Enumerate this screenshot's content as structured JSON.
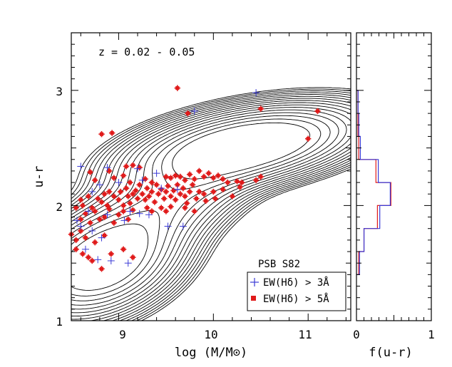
{
  "chart_data": [
    {
      "type": "scatter",
      "subtype": "contour + scatter",
      "title": "",
      "annotation_redshift": "z = 0.02 - 0.05",
      "xlabel": "log (M/M⊙)",
      "ylabel": "u-r",
      "xlim": [
        8.5,
        11.45
      ],
      "ylim": [
        1.0,
        3.5
      ],
      "xticks": [
        9,
        10,
        11
      ],
      "xtick_labels": [
        "9",
        "10",
        "11"
      ],
      "yticks": [
        1,
        2,
        3
      ],
      "ytick_labels": [
        "1",
        "2",
        "3"
      ],
      "legend": {
        "placement": "bottom-right",
        "title": "PSB S82",
        "entries": [
          {
            "label": "EW(Hδ) > 3Å",
            "marker": "plus",
            "color": "#3a3ad6"
          },
          {
            "label": "EW(Hδ) > 5Å",
            "marker": "filled-star",
            "color": "#e01b1b"
          }
        ]
      },
      "contours": {
        "levels": 16,
        "peaks": [
          {
            "name": "blue-cloud",
            "x": 8.82,
            "y": 1.5
          },
          {
            "name": "red-sequence",
            "x": 10.35,
            "y": 2.52
          }
        ]
      },
      "series": [
        {
          "name": "EW(Hδ) > 5Å",
          "marker": "filled-star",
          "color": "#e01b1b",
          "points": [
            [
              9.62,
              3.02
            ],
            [
              9.73,
              2.8
            ],
            [
              10.5,
              2.84
            ],
            [
              11.1,
              2.82
            ],
            [
              8.82,
              2.62
            ],
            [
              8.93,
              2.63
            ],
            [
              11.0,
              2.58
            ],
            [
              8.7,
              2.29
            ],
            [
              8.9,
              2.3
            ],
            [
              9.08,
              2.34
            ],
            [
              9.15,
              2.35
            ],
            [
              9.22,
              2.33
            ],
            [
              8.75,
              2.22
            ],
            [
              8.95,
              2.24
            ],
            [
              9.05,
              2.26
            ],
            [
              9.12,
              2.2
            ],
            [
              9.28,
              2.23
            ],
            [
              9.35,
              2.2
            ],
            [
              9.5,
              2.25
            ],
            [
              9.55,
              2.24
            ],
            [
              9.6,
              2.26
            ],
            [
              9.65,
              2.25
            ],
            [
              9.7,
              2.22
            ],
            [
              9.75,
              2.27
            ],
            [
              9.8,
              2.23
            ],
            [
              9.85,
              2.3
            ],
            [
              9.9,
              2.25
            ],
            [
              9.95,
              2.28
            ],
            [
              10.0,
              2.24
            ],
            [
              10.05,
              2.26
            ],
            [
              10.1,
              2.23
            ],
            [
              10.15,
              2.2
            ],
            [
              10.25,
              2.21
            ],
            [
              10.3,
              2.2
            ],
            [
              10.45,
              2.22
            ],
            [
              10.5,
              2.25
            ],
            [
              8.6,
              2.05
            ],
            [
              8.62,
              2.0
            ],
            [
              8.68,
              2.08
            ],
            [
              8.72,
              1.98
            ],
            [
              8.78,
              2.06
            ],
            [
              8.82,
              2.03
            ],
            [
              8.85,
              2.1
            ],
            [
              8.88,
              2.0
            ],
            [
              8.9,
              2.12
            ],
            [
              8.95,
              2.08
            ],
            [
              9.0,
              2.05
            ],
            [
              9.02,
              2.12
            ],
            [
              9.05,
              2.0
            ],
            [
              9.08,
              2.15
            ],
            [
              9.1,
              2.08
            ],
            [
              9.12,
              2.02
            ],
            [
              9.15,
              2.1
            ],
            [
              9.18,
              2.13
            ],
            [
              9.2,
              2.06
            ],
            [
              9.22,
              2.18
            ],
            [
              9.25,
              2.1
            ],
            [
              9.28,
              2.05
            ],
            [
              9.3,
              2.15
            ],
            [
              9.32,
              2.08
            ],
            [
              9.35,
              2.12
            ],
            [
              9.38,
              2.03
            ],
            [
              9.4,
              2.18
            ],
            [
              9.42,
              2.1
            ],
            [
              9.45,
              2.14
            ],
            [
              9.48,
              2.06
            ],
            [
              9.5,
              2.12
            ],
            [
              9.52,
              2.17
            ],
            [
              9.55,
              2.08
            ],
            [
              9.58,
              2.13
            ],
            [
              9.6,
              2.05
            ],
            [
              9.62,
              2.18
            ],
            [
              9.65,
              2.1
            ],
            [
              9.68,
              2.15
            ],
            [
              9.7,
              2.08
            ],
            [
              9.72,
              2.02
            ],
            [
              9.75,
              2.12
            ],
            [
              9.78,
              2.18
            ],
            [
              9.82,
              2.06
            ],
            [
              9.85,
              2.12
            ],
            [
              9.9,
              2.1
            ],
            [
              9.92,
              2.04
            ],
            [
              10.0,
              2.12
            ],
            [
              10.02,
              2.06
            ],
            [
              10.1,
              2.14
            ],
            [
              10.2,
              2.08
            ],
            [
              10.28,
              2.16
            ],
            [
              8.55,
              1.98
            ],
            [
              8.6,
              1.88
            ],
            [
              8.65,
              1.93
            ],
            [
              8.7,
              1.85
            ],
            [
              8.75,
              1.95
            ],
            [
              8.8,
              1.88
            ],
            [
              8.85,
              1.9
            ],
            [
              8.9,
              1.97
            ],
            [
              8.95,
              1.85
            ],
            [
              9.0,
              1.92
            ],
            [
              9.05,
              1.95
            ],
            [
              9.1,
              1.88
            ],
            [
              9.15,
              1.96
            ],
            [
              9.3,
              1.98
            ],
            [
              9.35,
              1.95
            ],
            [
              9.45,
              1.98
            ],
            [
              9.5,
              1.95
            ],
            [
              9.55,
              1.99
            ],
            [
              9.7,
              1.98
            ],
            [
              9.8,
              1.95
            ],
            [
              8.5,
              1.75
            ],
            [
              8.55,
              1.7
            ],
            [
              8.6,
              1.78
            ],
            [
              8.65,
              1.72
            ],
            [
              8.75,
              1.68
            ],
            [
              8.85,
              1.74
            ],
            [
              8.55,
              1.62
            ],
            [
              8.62,
              1.58
            ],
            [
              8.68,
              1.55
            ],
            [
              8.72,
              1.52
            ],
            [
              8.82,
              1.45
            ],
            [
              8.92,
              1.58
            ],
            [
              9.05,
              1.62
            ],
            [
              9.15,
              1.55
            ]
          ]
        },
        {
          "name": "EW(Hδ) > 3Å",
          "marker": "plus",
          "color": "#3a3ad6",
          "points": [
            [
              10.45,
              2.98
            ],
            [
              9.8,
              2.82
            ],
            [
              8.6,
              2.34
            ],
            [
              8.88,
              2.33
            ],
            [
              9.2,
              2.32
            ],
            [
              9.4,
              2.28
            ],
            [
              8.72,
              2.12
            ],
            [
              8.8,
              2.18
            ],
            [
              9.0,
              2.2
            ],
            [
              9.25,
              2.22
            ],
            [
              9.45,
              2.15
            ],
            [
              9.62,
              2.14
            ],
            [
              8.68,
              1.95
            ],
            [
              8.88,
              1.92
            ],
            [
              9.06,
              1.87
            ],
            [
              9.12,
              1.95
            ],
            [
              9.22,
              1.93
            ],
            [
              9.32,
              1.92
            ],
            [
              9.52,
              1.82
            ],
            [
              9.68,
              1.82
            ],
            [
              8.56,
              1.87
            ],
            [
              8.6,
              1.82
            ],
            [
              8.72,
              1.78
            ],
            [
              8.82,
              1.72
            ],
            [
              8.65,
              1.62
            ],
            [
              8.78,
              1.53
            ],
            [
              8.92,
              1.52
            ],
            [
              9.1,
              1.5
            ]
          ]
        }
      ]
    },
    {
      "type": "histogram",
      "orientation": "horizontal",
      "xlabel": "f(u-r)",
      "xlim": [
        0,
        1
      ],
      "xticks": [
        0,
        1
      ],
      "xtick_labels": [
        "0",
        "1"
      ],
      "ylim": [
        1.0,
        3.5
      ],
      "bin_edges": [
        1.4,
        1.6,
        1.8,
        2.0,
        2.2,
        2.4,
        2.6,
        2.8,
        3.0
      ],
      "series": [
        {
          "name": "EW(Hδ) > 5Å",
          "color": "#e01b1b",
          "values": [
            0.03,
            0.1,
            0.28,
            0.46,
            0.26,
            0.03,
            0.02,
            0.02
          ]
        },
        {
          "name": "EW(Hδ) > 3Å",
          "color": "#3a3ad6",
          "values": [
            0.03,
            0.09,
            0.3,
            0.44,
            0.28,
            0.04,
            0.02,
            0.01
          ]
        }
      ]
    }
  ]
}
